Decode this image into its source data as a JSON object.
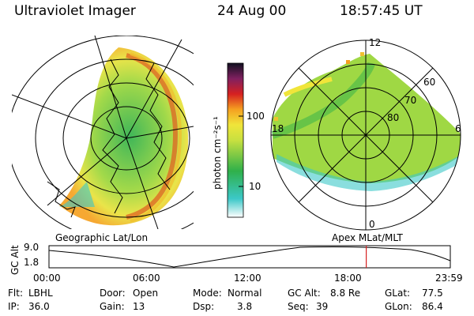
{
  "header": {
    "instrument": "Ultraviolet Imager",
    "date": "24 Aug 00",
    "time": "18:57:45 UT"
  },
  "colorbar": {
    "unit_label": "photon cm⁻²s⁻¹",
    "ticks": [
      "100",
      "10"
    ]
  },
  "polar_plot": {
    "mlt_labels": {
      "top": "12",
      "left": "18",
      "right": "6",
      "bottom": "0"
    },
    "lat_labels": [
      "60",
      "70",
      "80"
    ]
  },
  "plot_titles": {
    "left": "Geographic Lat/Lon",
    "right": "Apex MLat/MLT"
  },
  "altitude_plot": {
    "ylabel": "GC Alt",
    "yticks": [
      "9.0",
      "1.8"
    ],
    "xticks": [
      "00:00",
      "06:00",
      "12:00",
      "18:00",
      "23:59"
    ],
    "marker_time_hours": 18.96
  },
  "info": {
    "flt_label": "Flt:",
    "flt_value": "LBHL",
    "door_label": "Door:",
    "door_value": "Open",
    "mode_label": "Mode:",
    "mode_value": "Normal",
    "gcalt_label": "GC Alt:",
    "gcalt_value": "8.8 Re",
    "glat_label": "GLat:",
    "glat_value": "77.5",
    "ip_label": "IP:",
    "ip_value": "36.0",
    "gain_label": "Gain:",
    "gain_value": "13",
    "dsp_label": "Dsp:",
    "dsp_value": "3.8",
    "seq_label": "Seq:",
    "seq_value": "39",
    "glon_label": "GLon:",
    "glon_value": "86.4"
  },
  "colors": {
    "marker": "#d62020",
    "aurora_green": "#2fb04a",
    "aurora_yellow": "#f0e53a",
    "aurora_cyan": "#3cc8c8"
  }
}
